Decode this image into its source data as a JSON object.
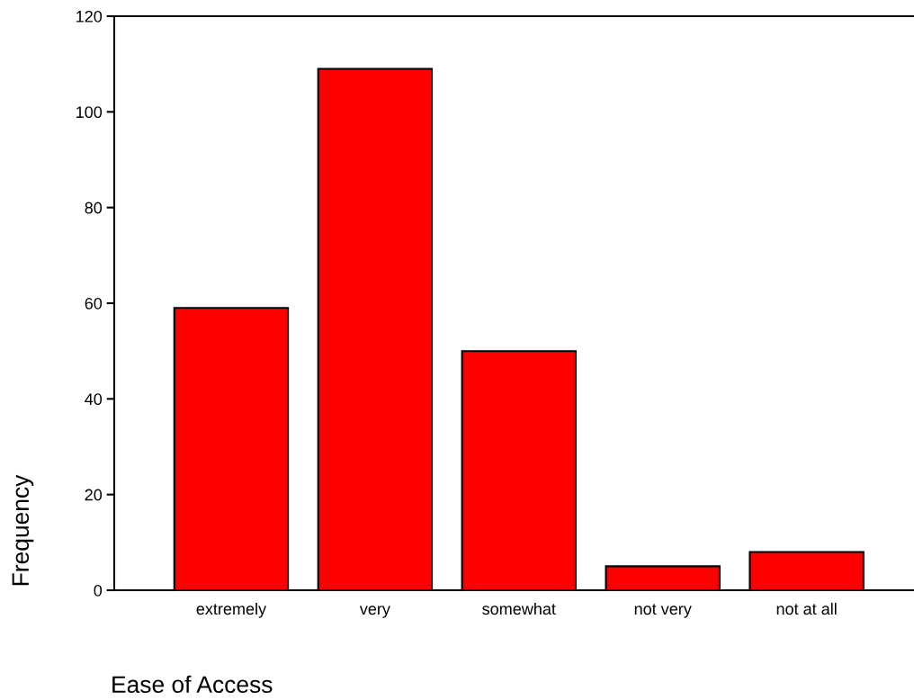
{
  "chart_data": {
    "type": "bar",
    "xlabel": "Ease of Access",
    "ylabel": "Frequency",
    "categories": [
      "extremely",
      "very",
      "somewhat",
      "not very",
      "not at all"
    ],
    "values": [
      59,
      109,
      50,
      5,
      8
    ],
    "color": "#ff0000",
    "ylim": [
      0,
      120
    ],
    "yticks": [
      0,
      20,
      40,
      60,
      80,
      100,
      120
    ],
    "grid": false,
    "legend": false
  }
}
